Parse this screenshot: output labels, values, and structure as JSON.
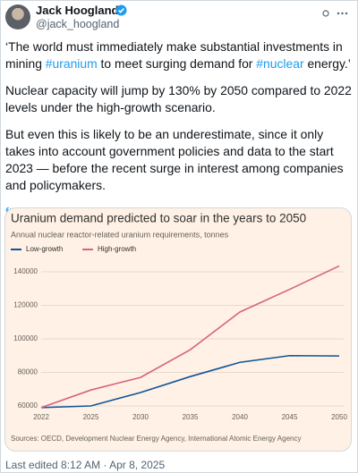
{
  "tweet": {
    "name": "Jack Hoogland",
    "handle": "@jack_hoogland",
    "paragraphs": [
      [
        "‘The world must immediately make substantial investments in mining ",
        "#uranium",
        " to meet surging demand for ",
        "#nuclear",
        " energy.’"
      ],
      [
        "Nuclear capacity will jump by 130% by 2050 compared to 2022 levels under the high-growth scenario."
      ],
      [
        "But even this is likely to be an underestimate, since it only takes into account government policies and data to the start 2023 — before the recent surge in interest among companies and policymakers."
      ]
    ],
    "link": "ft.com/content/6cbebe...",
    "footer": "Last edited 8:12 AM · Apr 8, 2025"
  },
  "chart_data": {
    "type": "line",
    "title": "Uranium demand predicted to soar in the years to 2050",
    "subtitle": "Annual nuclear reactor-related uranium requirements, tonnes",
    "source": "Sources: OECD, Development Nuclear Energy Agency, International Atomic Energy Agency",
    "categories": [
      "2022",
      "2025",
      "2030",
      "2035",
      "2040",
      "2045",
      "2050"
    ],
    "series": [
      {
        "name": "Low-growth",
        "color": "#0f5499",
        "values": [
          59000,
          60000,
          68000,
          77500,
          86000,
          90000,
          89800
        ]
      },
      {
        "name": "High-growth",
        "color": "#d6647b",
        "values": [
          59000,
          69500,
          77000,
          93500,
          116000,
          129500,
          143500
        ]
      }
    ],
    "ylim": [
      58000,
      146000
    ],
    "yticks": [
      60000,
      80000,
      100000,
      120000,
      140000
    ],
    "grid": true,
    "background": "#fff1e5"
  }
}
